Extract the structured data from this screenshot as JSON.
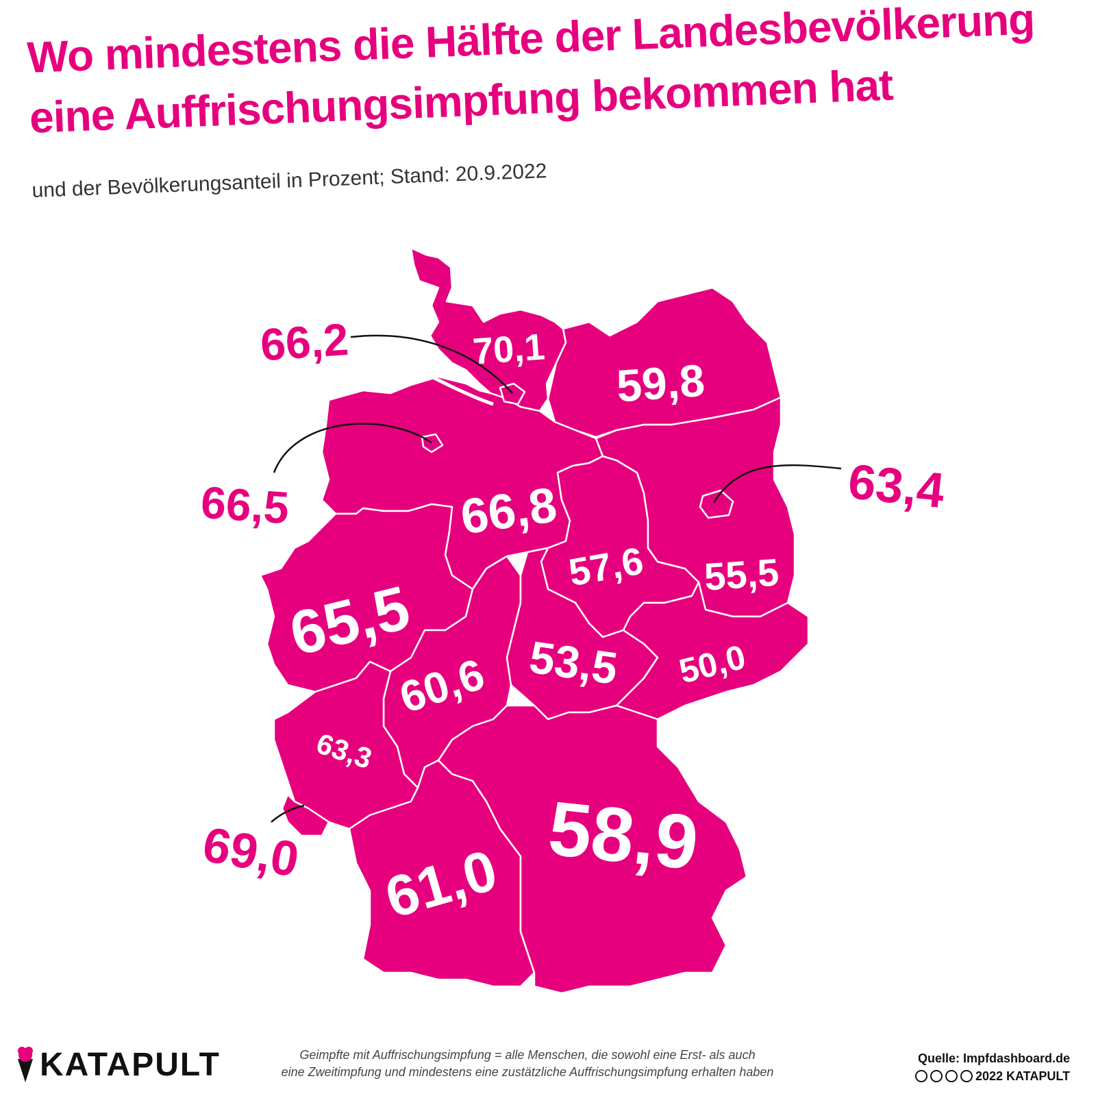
{
  "header": {
    "title_line1": "Wo mindestens die Hälfte der Landesbevölkerung",
    "title_line2": "eine Auffrischungsimpfung bekommen hat",
    "subtitle": "und der Bevölkerungsanteil in Prozent; Stand: 20.9.2022"
  },
  "colors": {
    "accent": "#e6007e",
    "text": "#111111",
    "region_border": "#ffffff"
  },
  "map": {
    "states": [
      {
        "id": "schleswig-holstein",
        "value": "70,1",
        "label_style": "inside"
      },
      {
        "id": "hamburg",
        "value": "66,2",
        "label_style": "callout"
      },
      {
        "id": "mecklenburg-vorpommern",
        "value": "59,8",
        "label_style": "inside"
      },
      {
        "id": "bremen",
        "value": "66,5",
        "label_style": "callout"
      },
      {
        "id": "niedersachsen",
        "value": "66,8",
        "label_style": "inside"
      },
      {
        "id": "berlin",
        "value": "63,4",
        "label_style": "callout"
      },
      {
        "id": "brandenburg",
        "value": "55,5",
        "label_style": "inside"
      },
      {
        "id": "sachsen-anhalt",
        "value": "57,6",
        "label_style": "inside"
      },
      {
        "id": "nordrhein-westfalen",
        "value": "65,5",
        "label_style": "inside"
      },
      {
        "id": "hessen",
        "value": "60,6",
        "label_style": "inside"
      },
      {
        "id": "thueringen",
        "value": "53,5",
        "label_style": "inside"
      },
      {
        "id": "sachsen",
        "value": "50,0",
        "label_style": "inside"
      },
      {
        "id": "rheinland-pfalz",
        "value": "63,3",
        "label_style": "inside"
      },
      {
        "id": "saarland",
        "value": "69,0",
        "label_style": "callout"
      },
      {
        "id": "baden-wuerttemberg",
        "value": "61,0",
        "label_style": "inside"
      },
      {
        "id": "bayern",
        "value": "58,9",
        "label_style": "inside"
      }
    ]
  },
  "footer": {
    "note_line1": "Geimpfte mit Auffrischungsimpfung = alle Menschen, die sowohl eine Erst- als auch",
    "note_line2": "eine Zweitimpfung und mindestens eine zustätzliche Auffrischungsimpfung erhalten haben",
    "logo_text": "KATAPULT",
    "source": "Quelle: Impfdashboard.de",
    "copyright": "2022 KATAPULT",
    "license_icons": [
      "cc-icon",
      "by-icon",
      "nc-icon",
      "nd-icon"
    ]
  }
}
